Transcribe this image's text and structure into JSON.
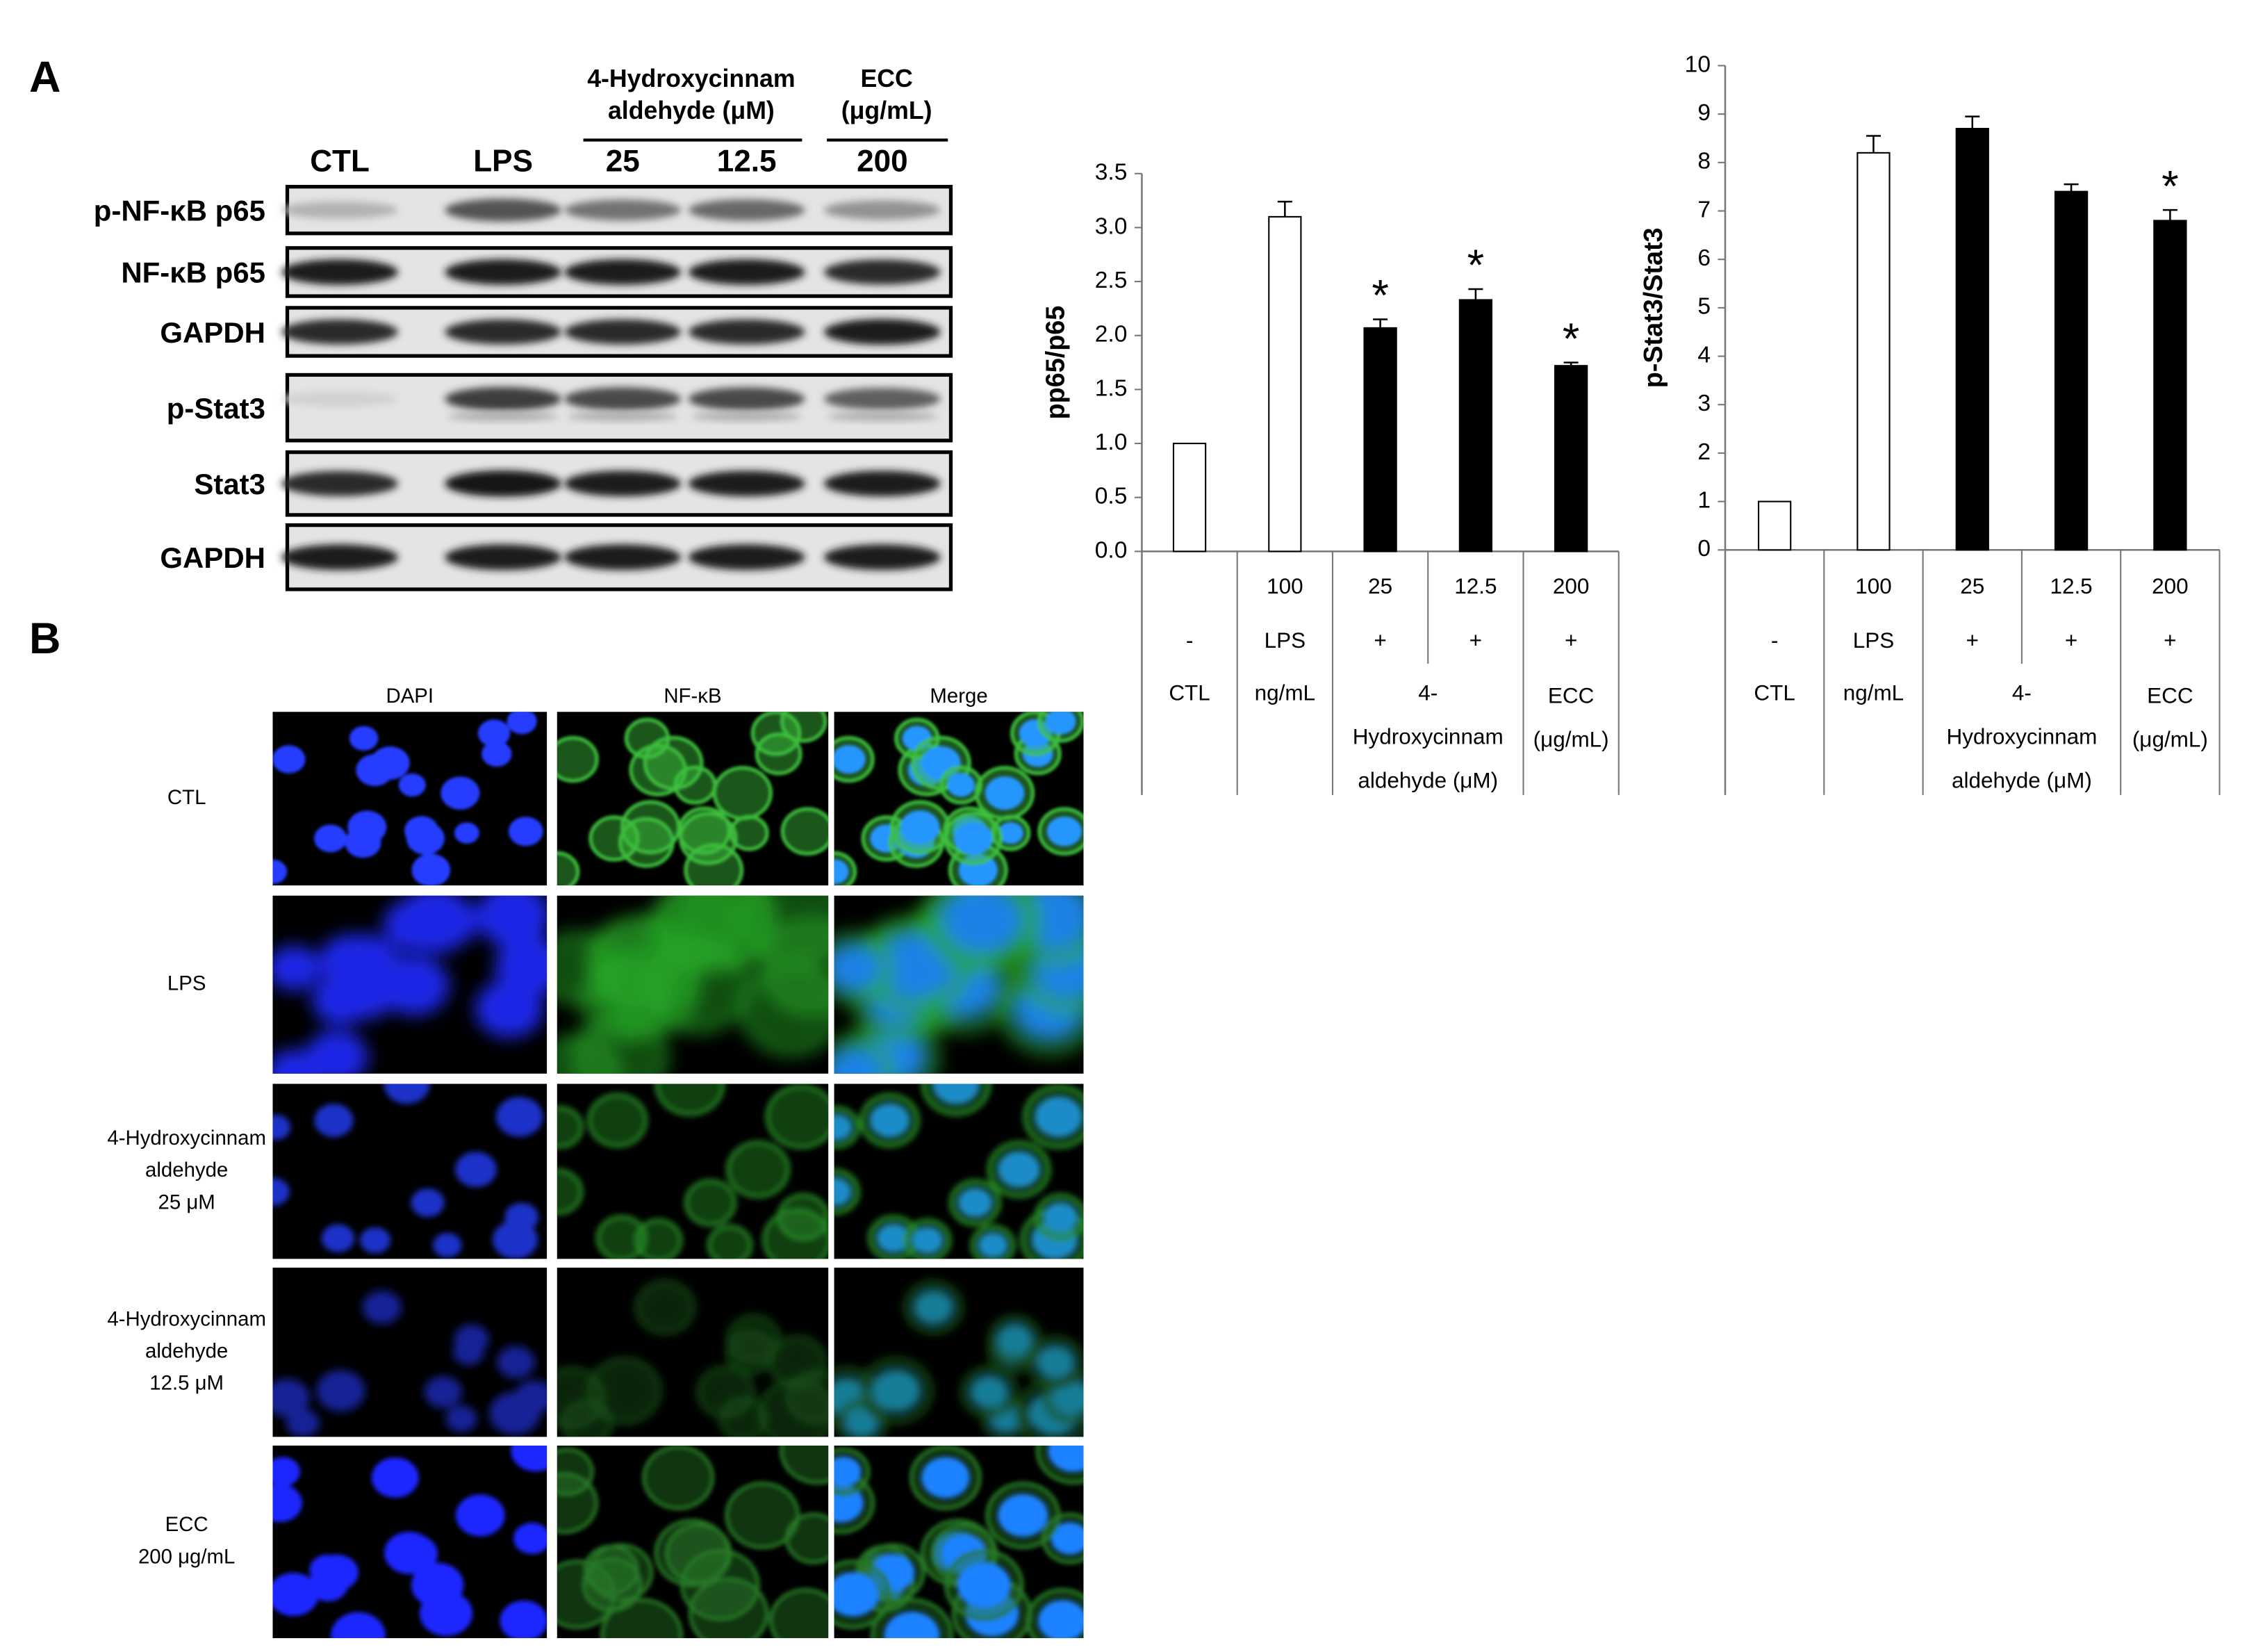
{
  "panel_a_label": "A",
  "panel_b_label": "B",
  "blot": {
    "header_groups": [
      {
        "lines": [
          "4-Hydroxycinnam",
          "aldehyde (μM)"
        ]
      },
      {
        "lines": [
          "ECC",
          "(μg/mL)"
        ]
      }
    ],
    "lanes": [
      "CTL",
      "LPS",
      "25",
      "12.5",
      "200"
    ],
    "rows": [
      "p-NF-κB p65",
      "NF-κB p65",
      "GAPDH",
      "p-Stat3",
      "Stat3",
      "GAPDH"
    ]
  },
  "chart_data": [
    {
      "type": "bar",
      "ylabel": "pp65/p65",
      "ylim": [
        0,
        3.5
      ],
      "yticks": [
        {
          "value": 0,
          "label": "0.0"
        },
        0.5,
        {
          "value": 1,
          "label": "1.0"
        },
        1.5,
        {
          "value": 2,
          "label": "2.0"
        },
        2.5,
        {
          "value": 3,
          "label": "3.0"
        },
        3.5
      ],
      "values": [
        1.0,
        3.1,
        2.07,
        2.33,
        1.72
      ],
      "errors": [
        0,
        0.14,
        0.08,
        0.1,
        0.03
      ],
      "colors": [
        "#ffffff",
        "#ffffff",
        "#000000",
        "#000000",
        "#000000"
      ],
      "significance": [
        null,
        null,
        "*",
        "*",
        "*"
      ],
      "table_rows": [
        [
          null,
          "100",
          "25",
          "12.5",
          "200"
        ],
        [
          "-",
          "LPS",
          "+",
          "+",
          "+"
        ]
      ],
      "groups": [
        {
          "lines": [
            "CTL"
          ],
          "span": 1
        },
        {
          "lines": [
            "ng/mL"
          ],
          "span": 1
        },
        {
          "lines": [
            "4-",
            "Hydroxycinnam",
            "aldehyde (μM)"
          ],
          "span": 2
        },
        {
          "lines": [
            "ECC",
            "(μg/mL)"
          ],
          "span": 1
        }
      ]
    },
    {
      "type": "bar",
      "ylabel": "p-Stat3/Stat3",
      "ylim": [
        0,
        10
      ],
      "yticks": [
        0,
        1,
        2,
        3,
        4,
        5,
        6,
        7,
        8,
        9,
        10
      ],
      "values": [
        1.0,
        8.2,
        8.7,
        7.4,
        6.8
      ],
      "errors": [
        0,
        0.35,
        0.25,
        0.15,
        0.22
      ],
      "colors": [
        "#ffffff",
        "#ffffff",
        "#000000",
        "#000000",
        "#000000"
      ],
      "significance": [
        null,
        null,
        null,
        null,
        "*"
      ],
      "table_rows": [
        [
          null,
          "100",
          "25",
          "12.5",
          "200"
        ],
        [
          "-",
          "LPS",
          "+",
          "+",
          "+"
        ]
      ],
      "groups": [
        {
          "lines": [
            "CTL"
          ],
          "span": 1
        },
        {
          "lines": [
            "ng/mL"
          ],
          "span": 1
        },
        {
          "lines": [
            "4-",
            "Hydroxycinnam",
            "aldehyde (μM)"
          ],
          "span": 2
        },
        {
          "lines": [
            "ECC",
            "(μg/mL)"
          ],
          "span": 1
        }
      ]
    }
  ],
  "microscopy": {
    "columns": [
      "DAPI",
      "NF-κB",
      "Merge"
    ],
    "rows": [
      [
        "CTL"
      ],
      [
        "LPS"
      ],
      [
        "4-Hydroxycinnam",
        "aldehyde",
        "25 μM"
      ],
      [
        "4-Hydroxycinnam",
        "aldehyde",
        "12.5 μM"
      ],
      [
        "ECC",
        "200 μg/mL"
      ]
    ]
  }
}
